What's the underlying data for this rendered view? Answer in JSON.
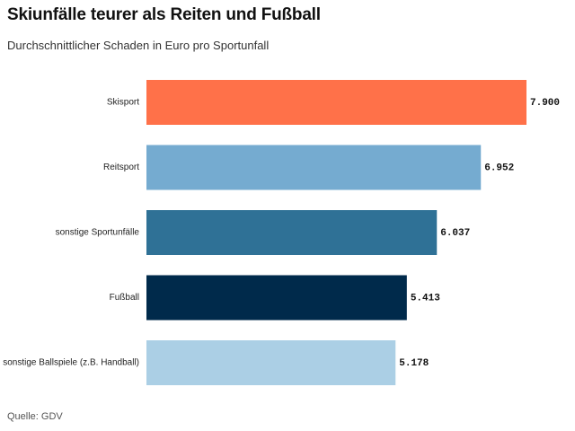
{
  "header": {
    "title": "Skiunfälle teurer als Reiten und Fußball",
    "subtitle": "Durchschnittlicher Schaden in Euro pro Sportunfall"
  },
  "footer": {
    "source": "Quelle: GDV"
  },
  "chart_data": {
    "type": "bar",
    "orientation": "horizontal",
    "title": "Skiunfälle teurer als Reiten und Fußball",
    "subtitle": "Durchschnittlicher Schaden in Euro pro Sportunfall",
    "categories": [
      "Skisport",
      "Reitsport",
      "sonstige Sportunfälle",
      "Fußball",
      "sonstige Ballspiele (z.B. Handball)"
    ],
    "values": [
      7900,
      6952,
      6037,
      5413,
      5178
    ],
    "value_labels": [
      "7.900",
      "6.952",
      "6.037",
      "5.413",
      "5.178"
    ],
    "colors": [
      "#ff7149",
      "#75abd0",
      "#2f7196",
      "#002a4b",
      "#abcfe5"
    ],
    "xlim": [
      0,
      7900
    ],
    "grid": false,
    "legend": "none"
  }
}
